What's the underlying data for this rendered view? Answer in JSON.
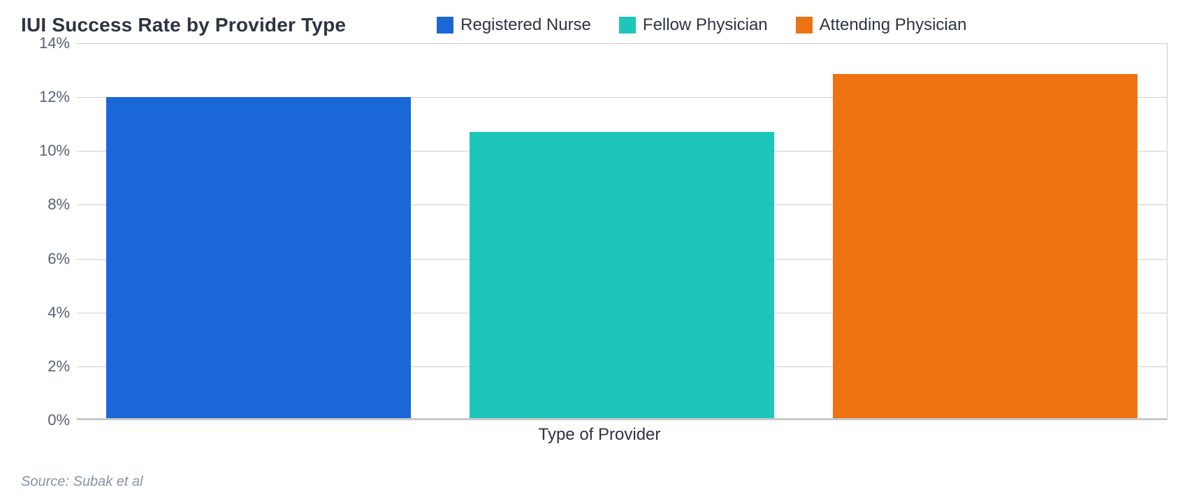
{
  "chart": {
    "type": "bar",
    "title": "IUI Success Rate by Provider Type",
    "title_fontsize": 28,
    "title_color": "#2d3440",
    "xlabel": "Type of Provider",
    "xlabel_fontsize": 24,
    "xlabel_color": "#2d3440",
    "ylabel_fontsize": 22,
    "ylabel_color": "#596273",
    "background_color": "#ffffff",
    "grid_color": "#d0d0d0",
    "baseline_color": "#c8c8c8",
    "ylim": [
      0,
      14
    ],
    "ytick_step": 2,
    "ytick_labels": [
      "0%",
      "2%",
      "4%",
      "6%",
      "8%",
      "10%",
      "12%",
      "14%"
    ],
    "categories": [
      "Registered Nurse",
      "Fellow Physician",
      "Attending Physician"
    ],
    "values": [
      12.0,
      10.7,
      12.85
    ],
    "bar_colors": [
      "#1a67d8",
      "#1cc6bb",
      "#ee7211"
    ],
    "bar_width": 0.84,
    "legend_position": "top"
  },
  "legend": {
    "items": [
      {
        "label": "Registered Nurse",
        "color": "#1a67d8"
      },
      {
        "label": "Fellow Physician",
        "color": "#1cc6bb"
      },
      {
        "label": "Attending Physician",
        "color": "#ee7211"
      }
    ]
  },
  "source": "Source: Subak et al"
}
